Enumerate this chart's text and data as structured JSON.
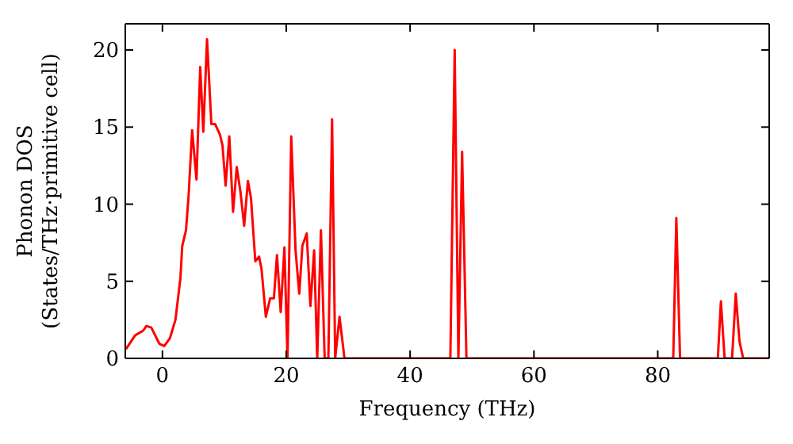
{
  "chart_data": {
    "type": "line",
    "xlabel": "Frequency (THz)",
    "ylabel": "Phonon DOS\n(States/THz·primitive cell)",
    "xlim": [
      -6,
      98
    ],
    "ylim": [
      0,
      21.7
    ],
    "xticks": [
      0,
      20,
      40,
      60,
      80
    ],
    "yticks": [
      0,
      5,
      10,
      15,
      20
    ],
    "marker": "none",
    "line_style": "solid",
    "x": [
      -5.9,
      -4.4,
      -3.1,
      -2.6,
      -1.8,
      -0.5,
      0.3,
      1.2,
      2.1,
      2.9,
      3.2,
      3.8,
      4.2,
      4.8,
      5.5,
      6.1,
      6.6,
      7.2,
      7.9,
      8.5,
      9.3,
      9.7,
      10.2,
      10.8,
      11.4,
      12.0,
      12.6,
      13.2,
      13.8,
      14.3,
      15.0,
      15.6,
      16.0,
      16.7,
      17.4,
      18.0,
      18.5,
      19.1,
      19.7,
      20.2,
      20.8,
      21.5,
      22.1,
      22.6,
      23.3,
      23.9,
      24.5,
      25.0,
      25.6,
      26.2,
      26.8,
      27.4,
      27.9,
      28.6,
      29.4,
      46.5,
      47.2,
      47.8,
      48.4,
      49.1,
      82.5,
      83.0,
      83.6,
      89.7,
      90.2,
      90.8,
      92.0,
      92.6,
      93.2,
      93.8,
      98
    ],
    "series": [
      {
        "color": "#ff0000",
        "values": [
          0.6,
          1.5,
          1.8,
          2.1,
          2.0,
          0.95,
          0.8,
          1.3,
          2.5,
          5.2,
          7.3,
          8.3,
          10.4,
          14.8,
          11.6,
          18.9,
          14.7,
          20.7,
          15.2,
          15.2,
          14.5,
          13.8,
          11.2,
          14.4,
          9.5,
          12.4,
          10.8,
          8.6,
          11.5,
          10.4,
          6.3,
          6.6,
          5.8,
          2.7,
          3.9,
          3.9,
          6.7,
          3.0,
          7.2,
          0,
          14.4,
          7.0,
          4.2,
          7.3,
          8.1,
          3.4,
          7.0,
          0,
          8.3,
          0,
          0,
          15.5,
          0,
          2.7,
          0,
          0,
          20.0,
          0,
          13.4,
          0,
          0,
          9.1,
          0,
          0,
          3.7,
          0,
          0,
          4.2,
          1.1,
          0,
          0
        ]
      }
    ]
  }
}
